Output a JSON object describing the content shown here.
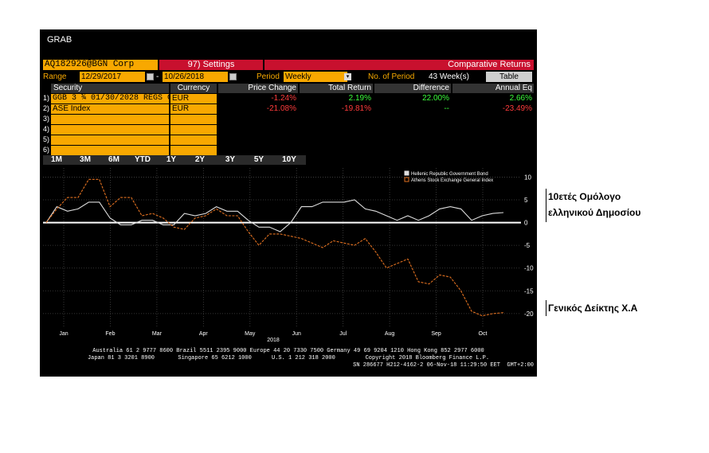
{
  "terminal": {
    "title": "GRAB",
    "ticker": "AQ182926@BGN  Corp",
    "settings_label": "97) Settings",
    "comparative_label": "Comparative Returns",
    "range_label": "Range",
    "range_start": "12/29/2017",
    "range_sep": "-",
    "range_end": "10/26/2018",
    "period_label": "Period",
    "period_value": "Weekly",
    "num_period_label": "No. of Period",
    "num_period_value": "43 Week(s)",
    "table_button": "Table"
  },
  "table": {
    "headers": [
      "Security",
      "Currency",
      "Price Change",
      "Total Return",
      "Difference",
      "Annual Eq"
    ],
    "row_numbers": [
      "1)",
      "2)",
      "3)",
      "4)",
      "5)",
      "6)"
    ],
    "rows": [
      {
        "security": "GGB 3 ¾ 01/30/2028 REGS C",
        "currency": "EUR",
        "price_change": "-1.24%",
        "total_return": "2.19%",
        "difference": "22.00%",
        "annual_eq": "2.66%"
      },
      {
        "security": "ASE Index",
        "currency": "EUR",
        "price_change": "-21.08%",
        "total_return": "-19.81%",
        "difference": "--",
        "annual_eq": "-23.49%"
      }
    ]
  },
  "periods": [
    "1M",
    "3M",
    "6M",
    "YTD",
    "1Y",
    "2Y",
    "3Y",
    "5Y",
    "10Y"
  ],
  "footer": {
    "line1": "Australia 61 2 9777 8600 Brazil 5511 2395 9000 Europe 44 20 7330 7500 Germany 49 69 9204 1210 Hong Kong 852 2977 6000",
    "line2": "Japan 81 3 3201 8900       Singapore 65 6212 1000      U.S. 1 212 318 2000         Copyright 2018 Bloomberg Finance L.P.",
    "line3": "SN 286677 H212-4162-2 06-Nov-18 11:29:50 EET  GMT+2:00"
  },
  "annotations": {
    "bond": "10ετές Ομόλογο ελληνικού Δημοσίου",
    "index": "Γενικός Δείκτης Χ.Α"
  },
  "colors": {
    "bloomberg_amber": "#f8a800",
    "bloomberg_red": "#c8102e",
    "bond_line": "#dddddd",
    "index_line": "#e07020"
  },
  "chart_data": {
    "type": "line",
    "x_tick_labels": [
      "Jan",
      "Feb",
      "Mar",
      "Apr",
      "May",
      "Jun",
      "Jul",
      "Aug",
      "Sep",
      "Oct"
    ],
    "x_year_label": "2018",
    "y_ticks": [
      10,
      5,
      0,
      -5,
      -10,
      -15,
      -20
    ],
    "ylim": [
      -23,
      12
    ],
    "grid": true,
    "legend_position": "top-right",
    "series": [
      {
        "name": "Hellenic Republic Government Bond",
        "color": "#dddddd",
        "values": [
          0,
          3.5,
          2.5,
          3,
          4.5,
          4.5,
          1,
          -0.5,
          -0.5,
          0.5,
          0.5,
          -0.5,
          -0.5,
          2,
          1.5,
          2,
          3.5,
          2.5,
          2.5,
          0.5,
          -1,
          -1,
          -2,
          0,
          3.5,
          3.5,
          4.5,
          4.5,
          4.5,
          5,
          3,
          2.5,
          1.5,
          0.5,
          1.5,
          0.5,
          1.5,
          3,
          3.5,
          3,
          0.5,
          1.5,
          2,
          2.2
        ]
      },
      {
        "name": "Athens Stock Exchange General Index",
        "color": "#e07020",
        "values": [
          0,
          3,
          5.5,
          5.5,
          9.5,
          9.5,
          3.5,
          5.5,
          5.5,
          1.5,
          2,
          1,
          -1,
          -1.5,
          1,
          1.5,
          3,
          1.5,
          1.5,
          -2,
          -5,
          -2.5,
          -2.5,
          -3,
          -3.5,
          -4.5,
          -5.5,
          -4,
          -4.5,
          -5,
          -3.5,
          -6.5,
          -10,
          -9,
          -8,
          -13,
          -13.5,
          -11.5,
          -12,
          -15,
          -19.5,
          -20.5,
          -20,
          -19.8
        ]
      }
    ]
  }
}
